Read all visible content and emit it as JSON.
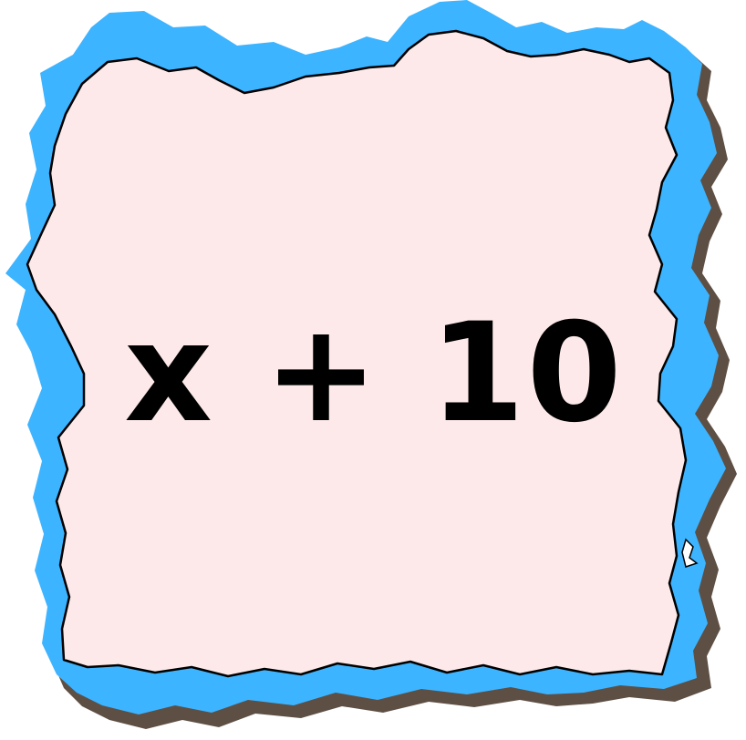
{
  "card": {
    "expression": "x + 10",
    "colors": {
      "shadow": "#5e4f44",
      "border": "#3db4ff",
      "fill": "#fde9e9",
      "outline": "#000000",
      "text": "#000000"
    }
  }
}
